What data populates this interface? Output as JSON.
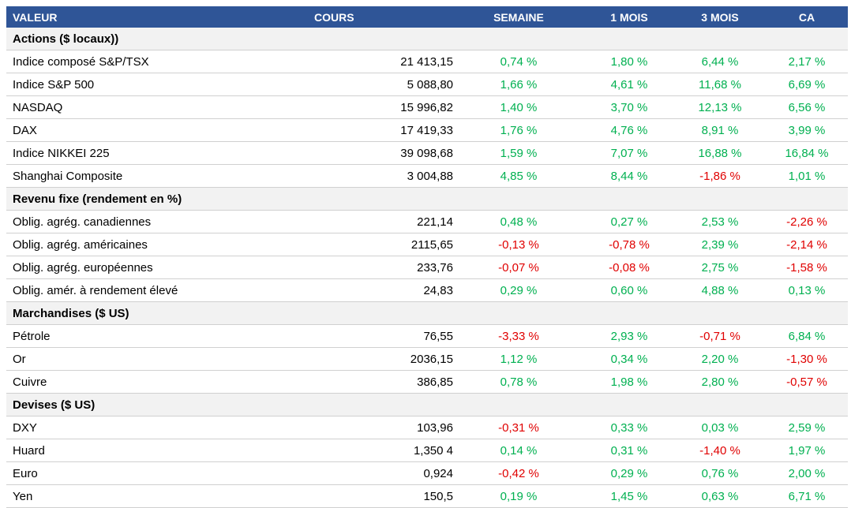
{
  "table": {
    "columns": [
      "VALEUR",
      "COURS",
      "SEMAINE",
      "1 MOIS",
      "3 MOIS",
      "CA"
    ],
    "sections": [
      {
        "title": "Actions ($ locaux))",
        "rows": [
          [
            "Indice composé S&P/TSX",
            "21 413,15",
            "0,74 %",
            "1,80 %",
            "6,44 %",
            "2,17 %"
          ],
          [
            "Indice S&P 500",
            "5 088,80",
            "1,66 %",
            "4,61 %",
            "11,68 %",
            "6,69 %"
          ],
          [
            "NASDAQ",
            "15 996,82",
            "1,40 %",
            "3,70 %",
            "12,13 %",
            "6,56 %"
          ],
          [
            "DAX",
            "17 419,33",
            "1,76 %",
            "4,76 %",
            "8,91 %",
            "3,99 %"
          ],
          [
            "Indice NIKKEI 225",
            "39 098,68",
            "1,59 %",
            "7,07 %",
            "16,88 %",
            "16,84 %"
          ],
          [
            "Shanghai Composite",
            "3 004,88",
            "4,85 %",
            "8,44 %",
            "-1,86 %",
            "1,01 %"
          ]
        ]
      },
      {
        "title": "Revenu fixe (rendement en %)",
        "rows": [
          [
            "Oblig. agrég. canadiennes",
            "221,14",
            "0,48 %",
            "0,27 %",
            "2,53 %",
            "-2,26 %"
          ],
          [
            "Oblig. agrég. américaines",
            "2115,65",
            "-0,13 %",
            "-0,78 %",
            "2,39 %",
            "-2,14 %"
          ],
          [
            "Oblig. agrég. européennes",
            "233,76",
            "-0,07 %",
            "-0,08 %",
            "2,75 %",
            "-1,58 %"
          ],
          [
            "Oblig. amér. à rendement élevé",
            "24,83",
            "0,29 %",
            "0,60 %",
            "4,88 %",
            "0,13 %"
          ]
        ]
      },
      {
        "title": "Marchandises ($ US)",
        "rows": [
          [
            "Pétrole",
            "76,55",
            "-3,33 %",
            "2,93 %",
            "-0,71 %",
            "6,84 %"
          ],
          [
            "Or",
            "2036,15",
            "1,12 %",
            "0,34 %",
            "2,20 %",
            "-1,30 %"
          ],
          [
            "Cuivre",
            "386,85",
            "0,78 %",
            "1,98 %",
            "2,80 %",
            "-0,57 %"
          ]
        ]
      },
      {
        "title": "Devises ($ US)",
        "rows": [
          [
            "DXY",
            "103,96",
            "-0,31 %",
            "0,33 %",
            "0,03 %",
            "2,59 %"
          ],
          [
            "Huard",
            "1,350 4",
            "0,14 %",
            "0,31 %",
            "-1,40 %",
            "1,97 %"
          ],
          [
            "Euro",
            "0,924",
            "-0,42 %",
            "0,29 %",
            "0,76 %",
            "2,00 %"
          ],
          [
            "Yen",
            "150,5",
            "0,19 %",
            "1,45 %",
            "0,63 %",
            "6,71 %"
          ]
        ]
      }
    ]
  }
}
